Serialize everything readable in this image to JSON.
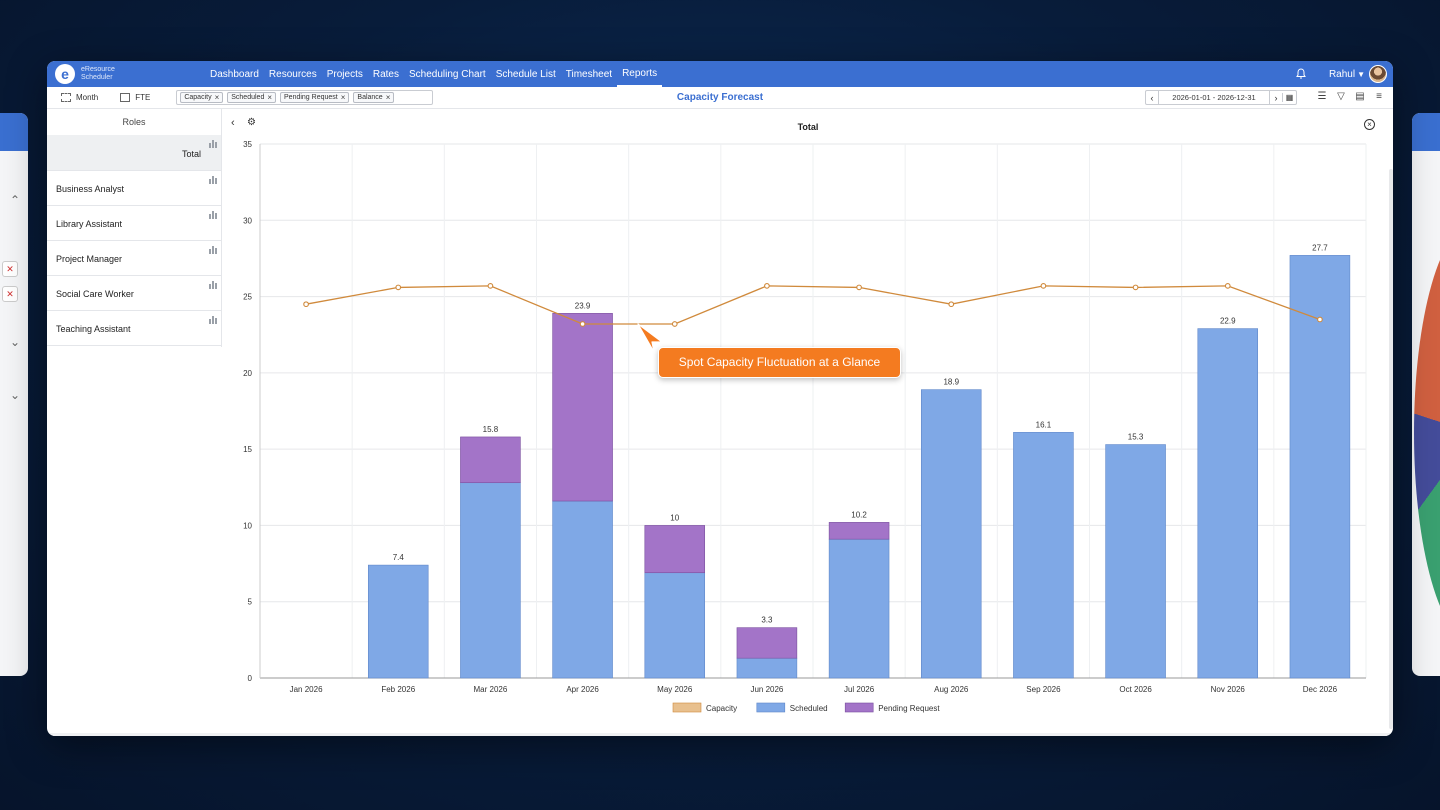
{
  "app": {
    "logo_line1": "eResource",
    "logo_line2": "Scheduler",
    "logo_letter": "e"
  },
  "nav": {
    "items": [
      "Dashboard",
      "Resources",
      "Projects",
      "Rates",
      "Scheduling Chart",
      "Schedule List",
      "Timesheet",
      "Reports"
    ],
    "active": "Reports",
    "user": "Rahul"
  },
  "toolbar": {
    "month_label": "Month",
    "fte_label": "FTE",
    "filters": [
      "Capacity",
      "Scheduled",
      "Pending Request",
      "Balance"
    ],
    "title": "Capacity Forecast",
    "date_range": "2026-01-01 - 2026-12-31"
  },
  "sidebar": {
    "header": "Roles",
    "total_label": "Total",
    "roles": [
      "Business Analyst",
      "Library Assistant",
      "Project Manager",
      "Social Care Worker",
      "Teaching Assistant"
    ]
  },
  "callout": {
    "text": "Spot Capacity Fluctuation at a Glance"
  },
  "colors": {
    "accent": "#3b6fd1",
    "capacity": "#d08a3c",
    "scheduled": "#7fa8e6",
    "pending": "#a374c8",
    "callout": "#f47b20"
  },
  "chart_data": {
    "type": "bar",
    "title": "Total",
    "stacked": true,
    "categories": [
      "Jan 2026",
      "Feb 2026",
      "Mar 2026",
      "Apr 2026",
      "May 2026",
      "Jun 2026",
      "Jul 2026",
      "Aug 2026",
      "Sep 2026",
      "Oct 2026",
      "Nov 2026",
      "Dec 2026"
    ],
    "series": [
      {
        "name": "Capacity",
        "type": "line",
        "values": [
          24.5,
          25.6,
          25.7,
          23.2,
          23.2,
          25.7,
          25.6,
          24.5,
          25.7,
          25.6,
          25.7,
          23.5
        ]
      },
      {
        "name": "Scheduled",
        "type": "bar",
        "values": [
          0,
          7.4,
          12.8,
          11.6,
          6.9,
          1.3,
          9.1,
          18.9,
          16.1,
          15.3,
          22.9,
          27.7
        ]
      },
      {
        "name": "Pending Request",
        "type": "bar",
        "values": [
          0,
          0,
          3.0,
          12.3,
          3.1,
          2.0,
          1.1,
          0,
          0,
          0,
          0,
          0
        ]
      }
    ],
    "totals_labels": [
      "",
      "7.4",
      "15.8",
      "23.9",
      "10",
      "3.3",
      "10.2",
      "18.9",
      "16.1",
      "15.3",
      "22.9",
      "27.7"
    ],
    "ylim": [
      0,
      35
    ],
    "yticks": [
      0,
      5,
      10,
      15,
      20,
      25,
      30,
      35
    ],
    "grid": true,
    "legend_position": "bottom"
  }
}
